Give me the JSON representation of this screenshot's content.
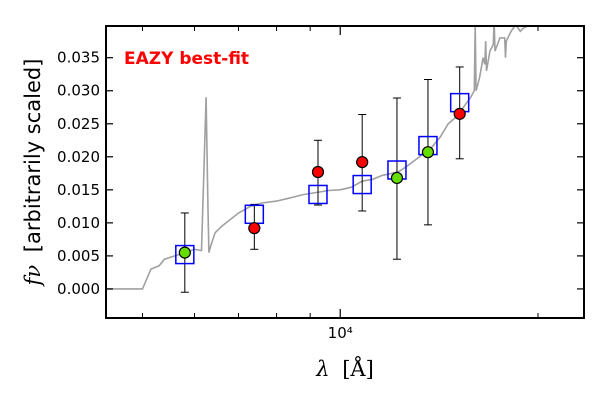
{
  "chart_data": {
    "type": "scatter",
    "annotation": "EAZY best-fit",
    "annotation_color": "#ff0000",
    "xlabel_symbol": "λ",
    "xlabel_unit": "[Å]",
    "ylabel_symbol": "fν",
    "ylabel_text": "[arbitrarily scaled]",
    "xscale": "log",
    "xlim": [
      4400,
      23500
    ],
    "ylim": [
      -0.0044,
      0.0398
    ],
    "x_tick_label": "10⁴",
    "y_ticks": [
      "0.000",
      "0.005",
      "0.010",
      "0.015",
      "0.020",
      "0.025",
      "0.030",
      "0.035"
    ],
    "y_tick_values": [
      0.0,
      0.005,
      0.01,
      0.015,
      0.02,
      0.025,
      0.03,
      0.035
    ],
    "colors": {
      "model": "#a0a0a0",
      "model_points": "#0000ff",
      "observed_red": "#ff0000",
      "observed_green": "#66dd00",
      "errorbar": "#000000"
    },
    "best_fit_spectrum": {
      "x": [
        4400,
        5000,
        5150,
        5300,
        5400,
        5600,
        5800,
        6000,
        6150,
        6250,
        6290,
        6310,
        6350,
        6450,
        6600,
        6800,
        7000,
        7300,
        7600,
        8000,
        8400,
        8800,
        9200,
        9600,
        10000,
        10400,
        10800,
        11200,
        11600,
        12000,
        12300,
        12600,
        13000,
        13400,
        13800,
        14200,
        14600,
        15000,
        15400,
        15800,
        16000,
        16050,
        16100,
        16300,
        16500,
        16600,
        16650,
        16700,
        16900,
        17100,
        17150,
        17200,
        17500,
        17800,
        17850,
        17900,
        18200,
        18500,
        18800,
        19000,
        19500,
        19800,
        20000
      ],
      "y": [
        0.0,
        0.0,
        0.003,
        0.0035,
        0.0045,
        0.005,
        0.0055,
        0.006,
        0.0058,
        0.029,
        0.012,
        0.0055,
        0.0065,
        0.0085,
        0.0095,
        0.0105,
        0.0115,
        0.0125,
        0.013,
        0.0133,
        0.0138,
        0.0143,
        0.0146,
        0.0149,
        0.015,
        0.0154,
        0.0163,
        0.0166,
        0.0172,
        0.0175,
        0.0178,
        0.0185,
        0.0195,
        0.0205,
        0.0215,
        0.023,
        0.025,
        0.026,
        0.0275,
        0.029,
        0.03,
        0.04,
        0.03,
        0.032,
        0.035,
        0.034,
        0.0375,
        0.033,
        0.036,
        0.037,
        0.041,
        0.036,
        0.038,
        0.038,
        0.035,
        0.0375,
        0.039,
        0.04,
        0.039,
        0.0395,
        0.04,
        0.0405,
        0.04
      ]
    },
    "model_photometry": {
      "x": [
        5800,
        7400,
        9250,
        10800,
        12200,
        13600,
        15200
      ],
      "y": [
        0.0052,
        0.0113,
        0.0143,
        0.0158,
        0.018,
        0.0217,
        0.0282
      ]
    },
    "observed_photometry": [
      {
        "x": 5800,
        "y": 0.0055,
        "err_low": 0.006,
        "err_high": 0.006,
        "color": "#66dd00"
      },
      {
        "x": 7400,
        "y": 0.0092,
        "err_low": 0.0032,
        "err_high": 0.0036,
        "color": "#ff0000"
      },
      {
        "x": 9250,
        "y": 0.0177,
        "err_low": 0.005,
        "err_high": 0.0048,
        "color": "#ff0000"
      },
      {
        "x": 10800,
        "y": 0.0192,
        "err_low": 0.0074,
        "err_high": 0.0072,
        "color": "#ff0000"
      },
      {
        "x": 12200,
        "y": 0.0168,
        "err_low": 0.0123,
        "err_high": 0.0121,
        "color": "#66dd00"
      },
      {
        "x": 13600,
        "y": 0.0207,
        "err_low": 0.011,
        "err_high": 0.011,
        "color": "#66dd00"
      },
      {
        "x": 15200,
        "y": 0.0265,
        "err_low": 0.0068,
        "err_high": 0.0071,
        "color": "#ff0000"
      }
    ]
  }
}
